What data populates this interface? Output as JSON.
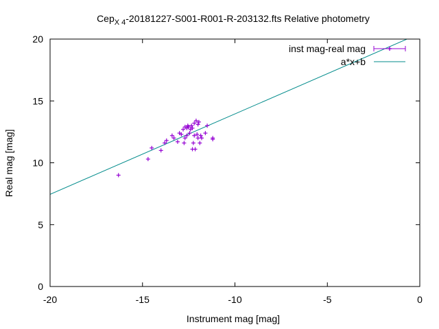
{
  "chart_data": {
    "type": "scatter",
    "title": {
      "prefix": "Cep",
      "subscript": "X 4",
      "suffix": "-20181227-S001-R001-R-203132.fts Relative photometry"
    },
    "xlabel": "Instrument mag [mag]",
    "ylabel": "Real mag [mag]",
    "xlim": [
      -20,
      0
    ],
    "ylim": [
      0,
      20
    ],
    "x_ticks": [
      -20,
      -15,
      -10,
      -5,
      0
    ],
    "y_ticks": [
      0,
      5,
      10,
      15,
      20
    ],
    "legend_position": "top-right",
    "series": [
      {
        "name": "inst mag-real mag",
        "kind": "points-errorbars",
        "color": "#9400d3",
        "points": [
          [
            -16.3,
            9.0
          ],
          [
            -14.7,
            10.3
          ],
          [
            -14.5,
            11.2
          ],
          [
            -14.0,
            11.0
          ],
          [
            -13.8,
            11.6
          ],
          [
            -13.7,
            11.8
          ],
          [
            -13.4,
            12.2
          ],
          [
            -13.3,
            12.0
          ],
          [
            -13.1,
            11.7
          ],
          [
            -13.0,
            12.4
          ],
          [
            -12.9,
            12.3
          ],
          [
            -12.8,
            12.7
          ],
          [
            -12.75,
            11.6
          ],
          [
            -12.7,
            12.0
          ],
          [
            -12.7,
            12.9
          ],
          [
            -12.6,
            12.2
          ],
          [
            -12.6,
            12.8
          ],
          [
            -12.55,
            13.0
          ],
          [
            -12.5,
            12.9
          ],
          [
            -12.45,
            12.4
          ],
          [
            -12.4,
            12.7
          ],
          [
            -12.35,
            13.0
          ],
          [
            -12.3,
            12.8
          ],
          [
            -12.3,
            11.1
          ],
          [
            -12.25,
            11.6
          ],
          [
            -12.2,
            13.2
          ],
          [
            -12.2,
            12.2
          ],
          [
            -12.15,
            11.1
          ],
          [
            -12.1,
            13.4
          ],
          [
            -12.05,
            12.3
          ],
          [
            -12.0,
            13.1
          ],
          [
            -12.0,
            12.0
          ],
          [
            -11.95,
            13.3
          ],
          [
            -11.9,
            11.6
          ],
          [
            -11.85,
            12.2
          ],
          [
            -11.8,
            12.0
          ],
          [
            -11.6,
            12.4
          ],
          [
            -11.5,
            13.0
          ],
          [
            -11.2,
            12.0
          ],
          [
            -11.2,
            11.9
          ]
        ]
      },
      {
        "name": "a*x+b",
        "kind": "line",
        "color": "#008b8b",
        "slope": 0.65,
        "intercept": 20.45
      }
    ]
  }
}
